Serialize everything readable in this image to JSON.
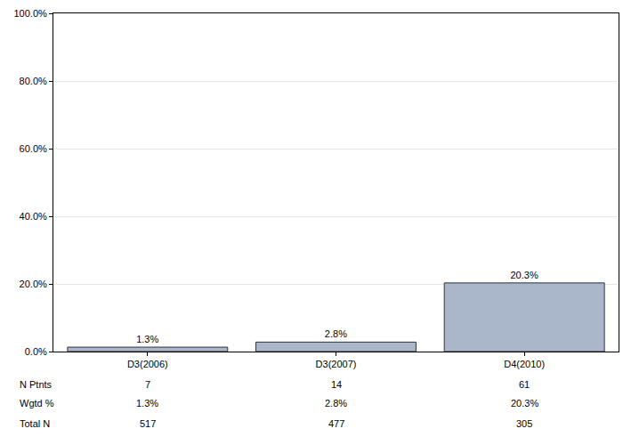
{
  "chart_data": {
    "type": "bar",
    "categories": [
      "D3(2006)",
      "D3(2007)",
      "D4(2010)"
    ],
    "values": [
      1.3,
      2.8,
      20.3
    ],
    "value_labels": [
      "1.3%",
      "2.8%",
      "20.3%"
    ],
    "data_labels": true,
    "color": "#aab7cb",
    "ylim": [
      0,
      100
    ],
    "yticks": [
      {
        "value": 0,
        "label": "0.0%"
      },
      {
        "value": 20,
        "label": "20.0%"
      },
      {
        "value": 40,
        "label": "40.0%"
      },
      {
        "value": 60,
        "label": "60.0%"
      },
      {
        "value": 80,
        "label": "80.0%"
      },
      {
        "value": 100,
        "label": "100.0%"
      }
    ],
    "grid": true
  },
  "table": {
    "rows": [
      {
        "label": "N Ptnts",
        "values": [
          "7",
          "14",
          "61"
        ]
      },
      {
        "label": "Wgtd %",
        "values": [
          "1.3%",
          "2.8%",
          "20.3%"
        ]
      },
      {
        "label": "Total N",
        "values": [
          "517",
          "477",
          "305"
        ]
      }
    ]
  }
}
